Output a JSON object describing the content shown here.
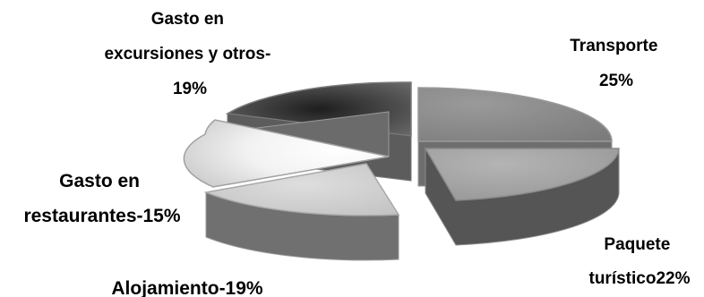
{
  "chart_data": {
    "type": "pie",
    "style": "3d-exploded",
    "slices": [
      {
        "name": "Transporte",
        "value": 25,
        "label_lines": [
          "Transporte",
          "25%"
        ],
        "color": "#8c8c8c"
      },
      {
        "name": "Paquete turístico",
        "value": 22,
        "label_lines": [
          "Paquete",
          "turístico22%"
        ],
        "color": "#a6a6a6"
      },
      {
        "name": "Alojamiento",
        "value": 19,
        "label_lines": [
          "Alojamiento-19%"
        ],
        "color": "#d0d0d0"
      },
      {
        "name": "Gasto en restaurantes",
        "value": 15,
        "label_lines": [
          "Gasto en",
          "restaurantes-15%"
        ],
        "color": "#e8e8e8"
      },
      {
        "name": "Gasto en excursiones y otros",
        "value": 19,
        "label_lines": [
          "Gasto en",
          "excursiones y otros-",
          "19%"
        ],
        "color": "#4a4a4a"
      }
    ]
  }
}
